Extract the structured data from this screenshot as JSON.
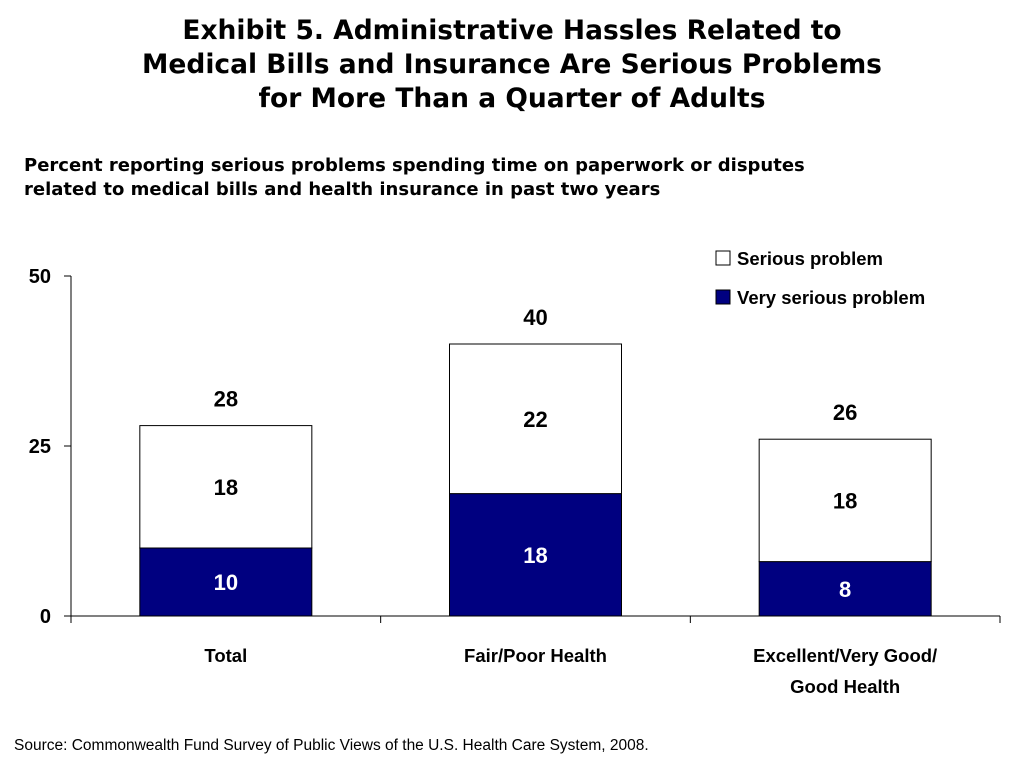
{
  "header": {
    "title_lines": [
      "Exhibit 5. Administrative Hassles Related to",
      "Medical Bills and Insurance Are Serious Problems",
      "for More Than a Quarter of Adults"
    ],
    "subtitle_lines": [
      "Percent reporting serious problems spending time on paperwork or disputes",
      "related to medical bills and health insurance in past two years"
    ]
  },
  "footer": {
    "source": "Source: Commonwealth Fund Survey of Public Views of the U.S. Health Care System, 2008."
  },
  "colors": {
    "very_serious": "#000080",
    "serious": "#ffffff",
    "outline": "#000000",
    "very_serious_label": "#ffffff",
    "serious_label": "#000000"
  },
  "chart_data": {
    "type": "bar",
    "stacked": true,
    "categories": [
      [
        "Total"
      ],
      [
        "Fair/Poor Health"
      ],
      [
        "Excellent/Very Good/",
        "Good Health"
      ]
    ],
    "series": [
      {
        "name": "Very serious problem",
        "values": [
          10,
          18,
          8
        ]
      },
      {
        "name": "Serious problem",
        "values": [
          18,
          22,
          18
        ]
      }
    ],
    "totals": [
      28,
      40,
      26
    ],
    "ylim": [
      0,
      50
    ],
    "yticks": [
      0,
      25,
      50
    ],
    "legend_position": "top-right",
    "legend_order": [
      "Serious problem",
      "Very serious problem"
    ],
    "grid": false
  }
}
